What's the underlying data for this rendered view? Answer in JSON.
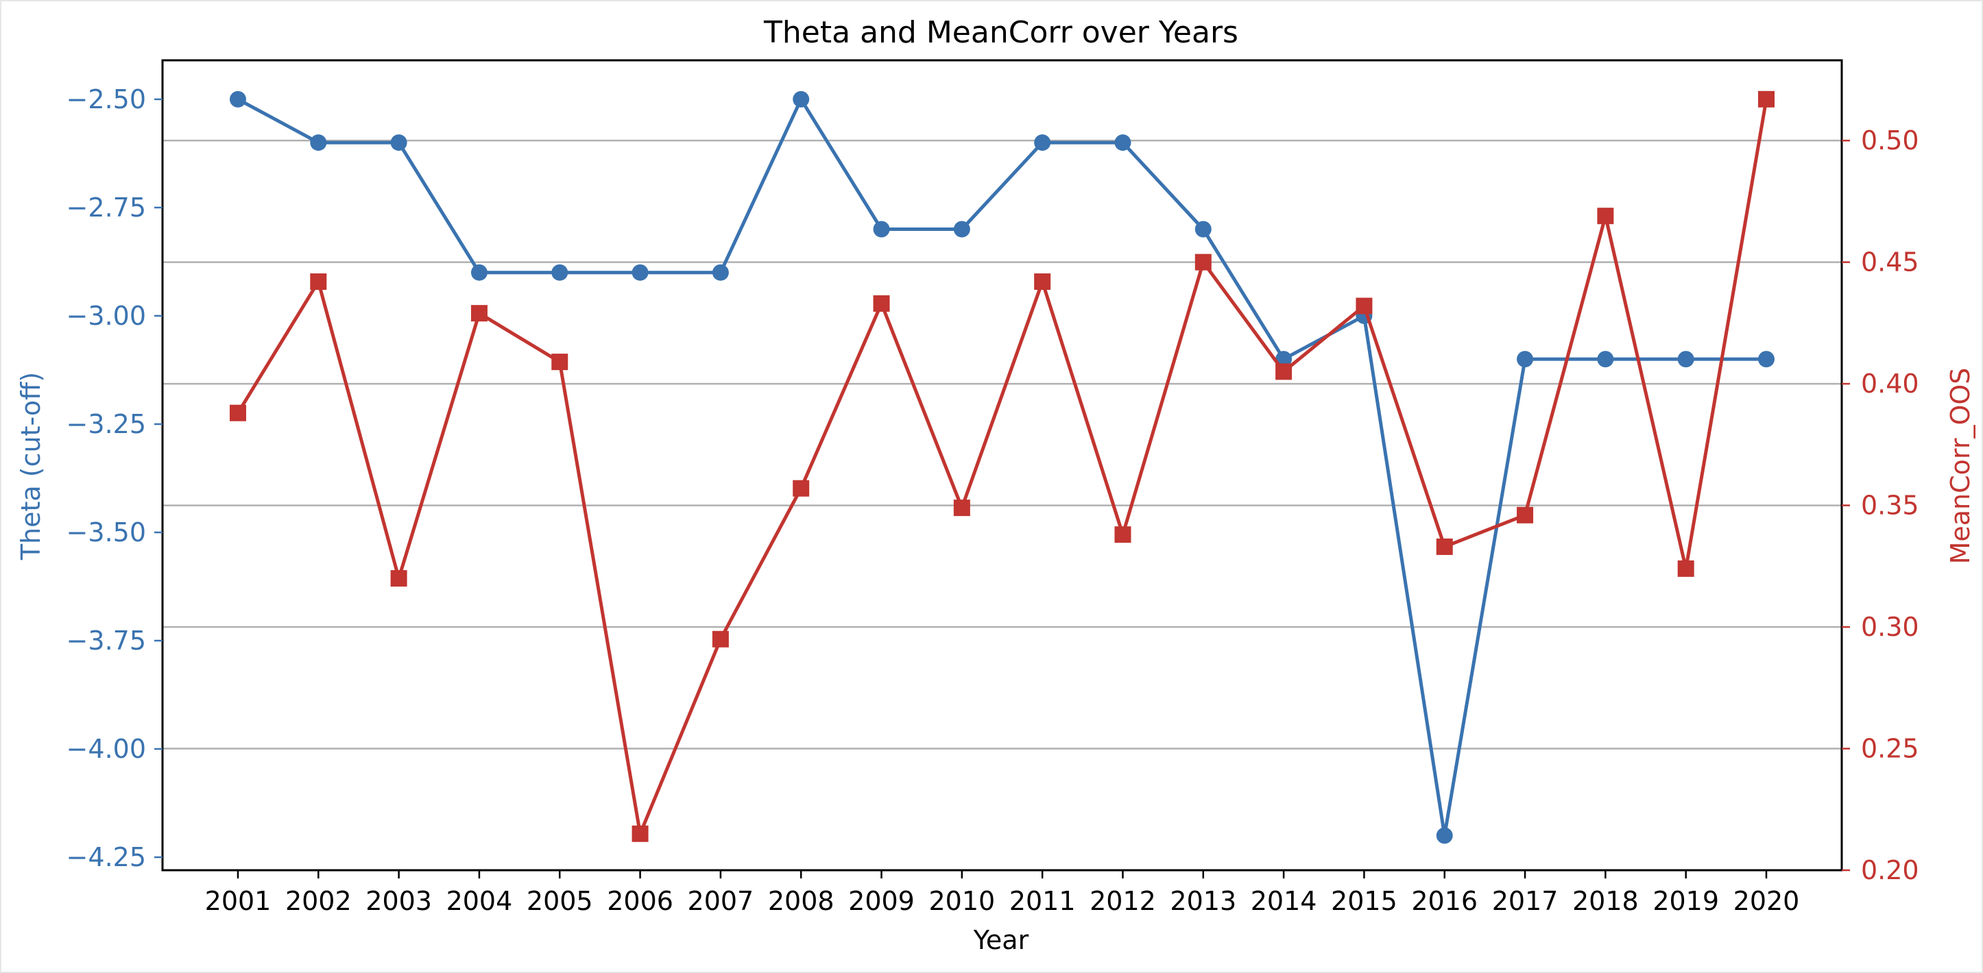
{
  "chart_data": {
    "type": "line",
    "title": "Theta and MeanCorr over Years",
    "xlabel": "Year",
    "ylabel_left": "Theta (cut-off)",
    "ylabel_right": "MeanCorr_OOS",
    "x": [
      "2001",
      "2002",
      "2003",
      "2004",
      "2005",
      "2006",
      "2007",
      "2008",
      "2009",
      "2010",
      "2011",
      "2012",
      "2013",
      "2014",
      "2015",
      "2016",
      "2017",
      "2018",
      "2019",
      "2020"
    ],
    "ylim_left": [
      -4.28,
      -2.41
    ],
    "ylim_right": [
      0.2,
      0.533
    ],
    "yticks_left": [
      "−2.50",
      "−2.75",
      "−3.00",
      "−3.25",
      "−3.50",
      "−3.75",
      "−4.00",
      "−4.25"
    ],
    "yticks_left_values": [
      -2.5,
      -2.75,
      -3.0,
      -3.25,
      -3.5,
      -3.75,
      -4.0,
      -4.25
    ],
    "yticks_right": [
      "0.20",
      "0.25",
      "0.30",
      "0.35",
      "0.40",
      "0.45",
      "0.50"
    ],
    "yticks_right_values": [
      0.2,
      0.25,
      0.3,
      0.35,
      0.4,
      0.45,
      0.5
    ],
    "grid": "right-axis horizontal",
    "left_color": "#3a73b0",
    "right_color": "#c23530",
    "series": [
      {
        "axis": "left",
        "marker": "circle",
        "color": "#3a73b0",
        "values": [
          -2.5,
          -2.6,
          -2.6,
          -2.9,
          -2.9,
          -2.9,
          -2.9,
          -2.5,
          -2.8,
          -2.8,
          -2.6,
          -2.6,
          -2.8,
          -3.1,
          -3.0,
          -4.2,
          -3.1,
          -3.1,
          -3.1,
          -3.1
        ]
      },
      {
        "axis": "right",
        "marker": "square",
        "color": "#c23530",
        "values": [
          0.388,
          0.442,
          0.32,
          0.429,
          0.409,
          0.215,
          0.295,
          0.357,
          0.433,
          0.349,
          0.442,
          0.338,
          0.45,
          0.405,
          0.432,
          0.333,
          0.346,
          0.469,
          0.324,
          0.517
        ]
      }
    ]
  }
}
